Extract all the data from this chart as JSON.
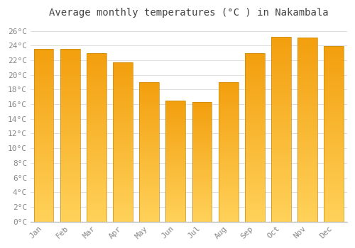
{
  "title": "Average monthly temperatures (°C ) in Nakambala",
  "months": [
    "Jan",
    "Feb",
    "Mar",
    "Apr",
    "May",
    "Jun",
    "Jul",
    "Aug",
    "Sep",
    "Oct",
    "Nov",
    "Dec"
  ],
  "values": [
    23.5,
    23.5,
    23.0,
    21.7,
    19.0,
    16.5,
    16.3,
    19.0,
    23.0,
    25.2,
    25.1,
    23.9
  ],
  "bar_color_bottom": "#FFC04C",
  "bar_color_top": "#F0A000",
  "bar_color_edge": "#C8890A",
  "ylim": [
    0,
    27
  ],
  "ytick_max": 26,
  "ytick_step": 2,
  "background_color": "#FFFFFF",
  "plot_bg_color": "#FFFFFF",
  "grid_color": "#DDDDDD",
  "title_fontsize": 10,
  "tick_fontsize": 8,
  "tick_color": "#888888",
  "title_color": "#444444",
  "font_family": "monospace",
  "bar_width": 0.75
}
